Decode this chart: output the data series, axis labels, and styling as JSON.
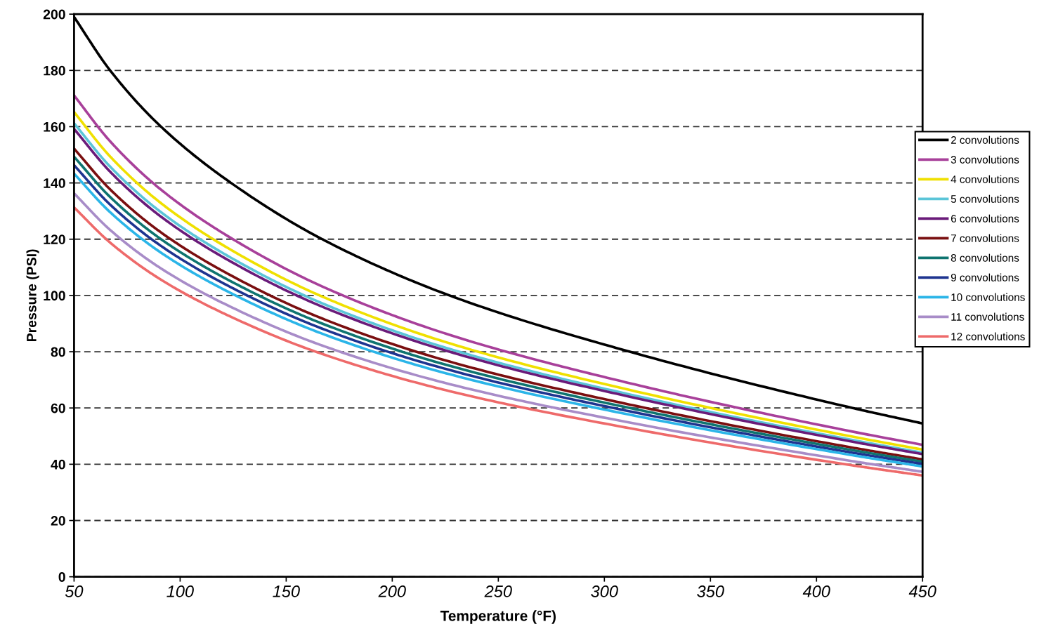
{
  "chart_data": {
    "type": "line",
    "xlabel": "Temperature (°F)",
    "ylabel": "Pressure (PSI)",
    "x": [
      50,
      67,
      91,
      124,
      167,
      227,
      312,
      417,
      450
    ],
    "xlim": [
      50,
      450
    ],
    "xticks": [
      50,
      100,
      150,
      200,
      250,
      300,
      350,
      400,
      450
    ],
    "ylim": [
      0,
      200
    ],
    "yticks": [
      0,
      20,
      40,
      60,
      80,
      100,
      120,
      140,
      160,
      180,
      200
    ],
    "grid": "y",
    "legend": "right",
    "marker": "none",
    "line_style": "solid",
    "series": [
      {
        "name": "2 convolutions",
        "color": "#000000",
        "values": [
          199,
          180,
          160,
          140,
          120,
          100,
          80,
          60,
          54.5
        ]
      },
      {
        "name": "3 convolutions",
        "color": "#a8409a",
        "values": [
          171.1,
          154.8,
          137.6,
          120.4,
          103.2,
          86,
          68.8,
          51.6,
          46.9
        ]
      },
      {
        "name": "4 convolutions",
        "color": "#f0e000",
        "values": [
          165.2,
          149.4,
          132.8,
          116.2,
          99.6,
          83,
          66.4,
          49.8,
          45.2
        ]
      },
      {
        "name": "5 convolutions",
        "color": "#5bc5d8",
        "values": [
          161.2,
          145.8,
          129.6,
          113.4,
          97.2,
          81,
          64.8,
          48.6,
          44.1
        ]
      },
      {
        "name": "6 convolutions",
        "color": "#6a1b7a",
        "values": [
          159.2,
          144,
          128,
          112,
          96,
          80,
          64,
          48,
          43.6
        ]
      },
      {
        "name": "7 convolutions",
        "color": "#7a0f10",
        "values": [
          152.2,
          137.7,
          122.4,
          107.1,
          91.8,
          76.5,
          61.2,
          45.9,
          41.7
        ]
      },
      {
        "name": "8 convolutions",
        "color": "#0e7470",
        "values": [
          149.3,
          135,
          120,
          105,
          90,
          75,
          60,
          45,
          40.9
        ]
      },
      {
        "name": "9 convolutions",
        "color": "#1e3490",
        "values": [
          146.3,
          132.3,
          117.6,
          102.9,
          88.2,
          73.5,
          58.8,
          44.1,
          40.1
        ]
      },
      {
        "name": "10 convolutions",
        "color": "#2bb5e8",
        "values": [
          143.3,
          129.6,
          115.2,
          100.8,
          86.4,
          72,
          57.6,
          43.2,
          39.2
        ]
      },
      {
        "name": "11 convolutions",
        "color": "#a88cc8",
        "values": [
          136.3,
          123.3,
          109.6,
          95.9,
          82.2,
          68.5,
          54.8,
          41.1,
          37.3
        ]
      },
      {
        "name": "12 convolutions",
        "color": "#ee6a6a",
        "values": [
          131.3,
          118.8,
          105.6,
          92.4,
          79.2,
          66,
          52.8,
          39.6,
          36
        ]
      }
    ]
  }
}
